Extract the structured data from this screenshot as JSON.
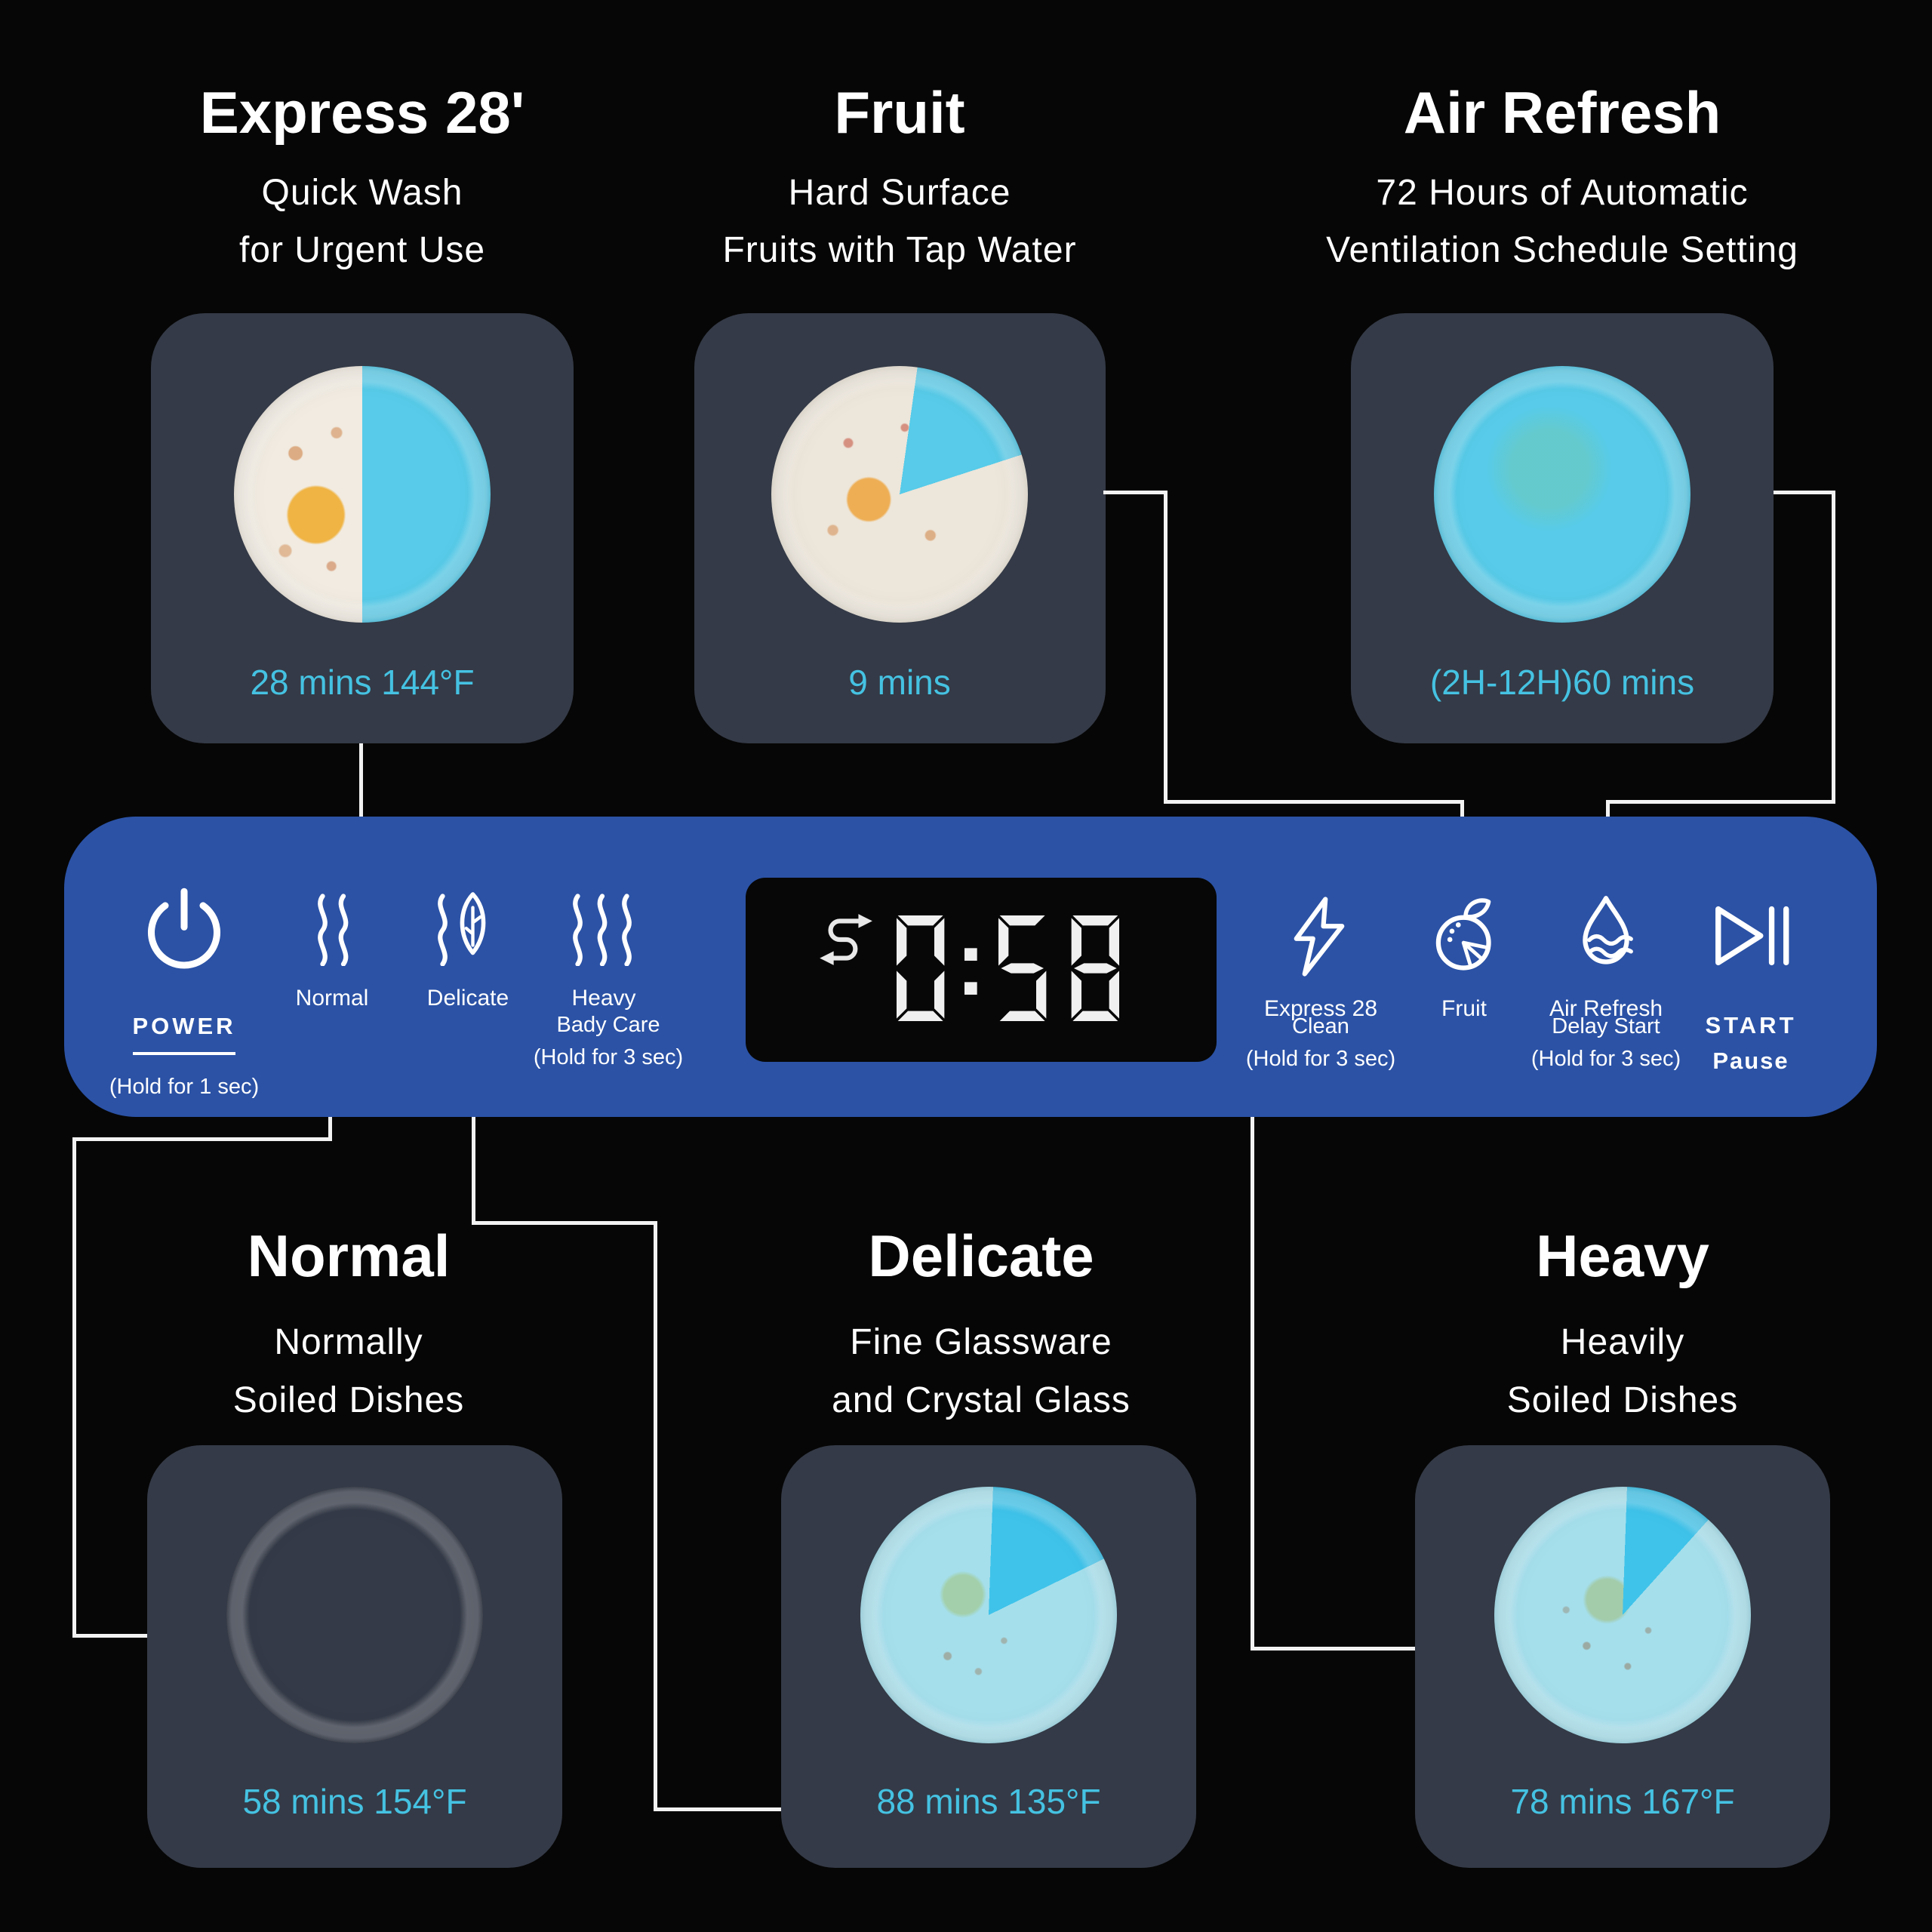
{
  "colors": {
    "background": "#060606",
    "panel-blue": "#2b52a5",
    "card-slate": "#343a47",
    "accent-cyan": "#45c2e2",
    "plate-cyan": "#57cbe9",
    "plate-washed": "#a5dfec",
    "line-white": "#f2f2f2",
    "lcd-black": "#070707",
    "text-white": "#ffffff"
  },
  "top_modes": [
    {
      "title": "Express 28'",
      "desc_lines": [
        "Quick Wash",
        "for Urgent Use"
      ],
      "time": "28 mins 144°F"
    },
    {
      "title": "Fruit",
      "desc_lines": [
        "Hard Surface",
        "Fruits with Tap Water"
      ],
      "time": "9 mins"
    },
    {
      "title": "Air Refresh",
      "desc_lines": [
        "72 Hours of Automatic",
        "Ventilation Schedule Setting"
      ],
      "time": "(2H-12H)60 mins"
    }
  ],
  "bottom_modes": [
    {
      "title": "Normal",
      "desc_lines": [
        "Normally",
        "Soiled Dishes"
      ],
      "time": "58 mins 154°F"
    },
    {
      "title": "Delicate",
      "desc_lines": [
        "Fine Glassware",
        "and Crystal Glass"
      ],
      "time": "88 mins 135°F"
    },
    {
      "title": "Heavy",
      "desc_lines": [
        "Heavily",
        "Soiled Dishes"
      ],
      "time": "78 mins 167°F"
    }
  ],
  "panel": {
    "power": {
      "label": "POWER",
      "hold": "(Hold for 1 sec)"
    },
    "wash_buttons": [
      {
        "label": "Normal"
      },
      {
        "label": "Delicate"
      },
      {
        "label": "Heavy"
      }
    ],
    "body_care": {
      "label": "Bady Care",
      "hold": "(Hold for 3 sec)"
    },
    "display": {
      "time": "0:58"
    },
    "feature_buttons": [
      {
        "label": "Express 28"
      },
      {
        "label": "Fruit"
      },
      {
        "label": "Air Refresh"
      }
    ],
    "clean": {
      "label": "Clean",
      "hold": "(Hold for 3 sec)"
    },
    "delay_start": {
      "label": "Delay Start",
      "hold": "(Hold for 3 sec)"
    },
    "start": {
      "label": "START",
      "sub": "Pause"
    }
  }
}
